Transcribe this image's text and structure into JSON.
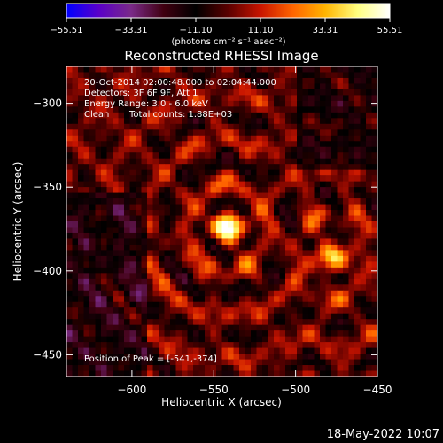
{
  "colorbar": {
    "tick_labels": [
      "−55.51",
      "−33.31",
      "−11.10",
      "11.10",
      "33.31",
      "55.51"
    ],
    "units_label": "(photons cm⁻² s⁻¹ asec⁻²)",
    "range": [
      -55.51,
      55.51
    ],
    "colors": [
      "#0000ff",
      "#5a00c8",
      "#7a2a88",
      "#400010",
      "#000000",
      "#5a0000",
      "#c81400",
      "#ff6400",
      "#ffb400",
      "#ffff80",
      "#ffffff"
    ]
  },
  "chart_data": {
    "type": "heatmap",
    "title": "Reconstructed RHESSI Image",
    "xlabel": "Heliocentric X (arcsec)",
    "ylabel": "Heliocentric Y (arcsec)",
    "xlim": [
      -640,
      -450
    ],
    "ylim": [
      -463,
      -278
    ],
    "x_ticks": [
      -600,
      -550,
      -500,
      -450
    ],
    "y_ticks": [
      -300,
      -350,
      -400,
      -450
    ],
    "x_tick_labels": [
      "−600",
      "−550",
      "−500",
      "−450"
    ],
    "y_tick_labels": [
      "−300",
      "−350",
      "−400",
      "−450"
    ],
    "annotations": [
      "20-Oct-2014 02:00:48.000 to 02:04:44.000",
      "Detectors: 3F 6F 9F, Att 1",
      "Energy Range: 3.0 - 6.0 keV",
      "Clean",
      "Total counts: 1.88E+03"
    ],
    "peak_label": "Position of Peak = [-541,-374]",
    "peak": [
      -541,
      -374
    ],
    "sources": [
      {
        "x": -541,
        "y": -374,
        "peak": 55.51
      },
      {
        "x": -478,
        "y": -392,
        "peak": 40
      }
    ]
  },
  "footer": {
    "date": "18-May-2022 10:07"
  }
}
